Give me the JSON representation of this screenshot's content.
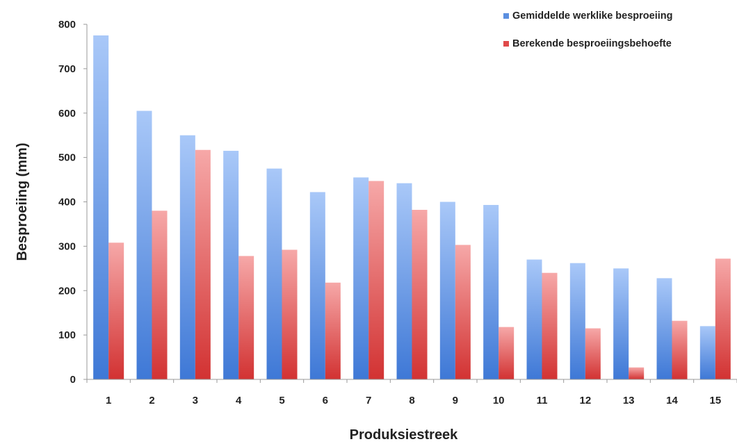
{
  "chart_data": {
    "type": "bar",
    "title": "",
    "xlabel": "Produksiestreek",
    "ylabel": "Besproeiing (mm)",
    "ylim": [
      0,
      800
    ],
    "yticks": [
      0,
      100,
      200,
      300,
      400,
      500,
      600,
      700,
      800
    ],
    "categories": [
      "1",
      "2",
      "3",
      "4",
      "5",
      "6",
      "7",
      "8",
      "9",
      "10",
      "11",
      "12",
      "13",
      "14",
      "15"
    ],
    "series": [
      {
        "name": "Gemiddelde werklike besproeiing",
        "color": "#5B8FE0",
        "values": [
          775,
          605,
          550,
          515,
          475,
          422,
          455,
          442,
          400,
          393,
          270,
          262,
          250,
          228,
          120
        ]
      },
      {
        "name": "Berekende besproeiingsbehoefte",
        "color": "#E04A4A",
        "values": [
          308,
          380,
          517,
          278,
          292,
          218,
          447,
          382,
          303,
          118,
          240,
          115,
          27,
          132,
          272
        ]
      }
    ],
    "legend_position": "top-right",
    "grid": false
  }
}
